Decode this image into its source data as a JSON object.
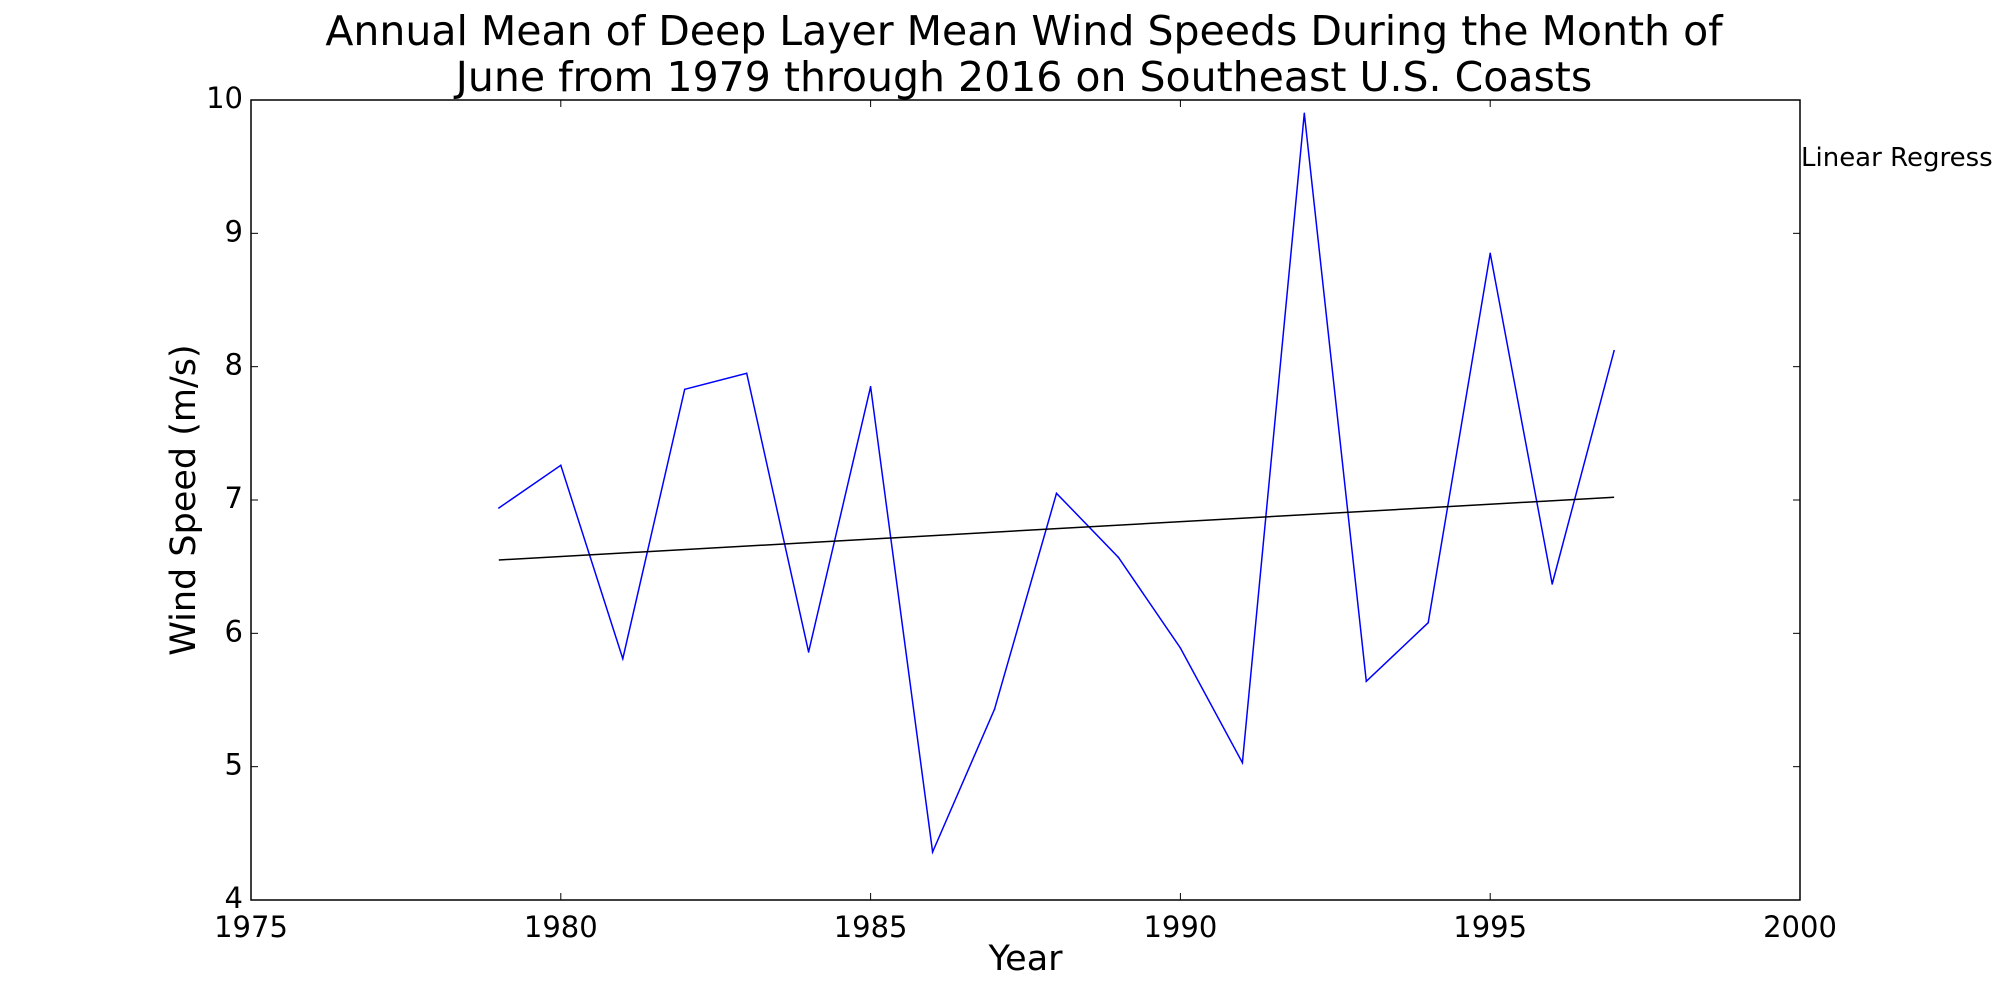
{
  "chart_data": {
    "type": "line",
    "title_lines": [
      "Annual Mean of Deep Layer Mean Wind Speeds During the Month of",
      "June from 1979 through 2016 on Southeast U.S. Coasts"
    ],
    "xlabel": "Year",
    "ylabel": "Wind Speed (m/s)",
    "xlim": [
      1975,
      2000
    ],
    "ylim": [
      4,
      10
    ],
    "xticks": [
      "1975",
      "1980",
      "1985",
      "1990",
      "1995",
      "2000"
    ],
    "yticks": [
      "4",
      "5",
      "6",
      "7",
      "8",
      "9",
      "10"
    ],
    "grid": false,
    "annotation": "Linear Regress",
    "series": [
      {
        "color": "#0000ff",
        "x": [
          1979,
          1980,
          1981,
          1982,
          1983,
          1984,
          1985,
          1986,
          1987,
          1988,
          1989,
          1990,
          1991,
          1992,
          1993,
          1994,
          1995,
          1996,
          1997
        ],
        "y": [
          6.94,
          7.26,
          5.81,
          7.83,
          7.95,
          5.86,
          7.85,
          4.36,
          5.43,
          7.05,
          6.57,
          5.89,
          5.03,
          9.9,
          5.64,
          6.08,
          8.85,
          6.37,
          8.12
        ]
      },
      {
        "color": "#000000",
        "x": [
          1979,
          1997
        ],
        "y": [
          6.55,
          7.02
        ]
      }
    ]
  }
}
